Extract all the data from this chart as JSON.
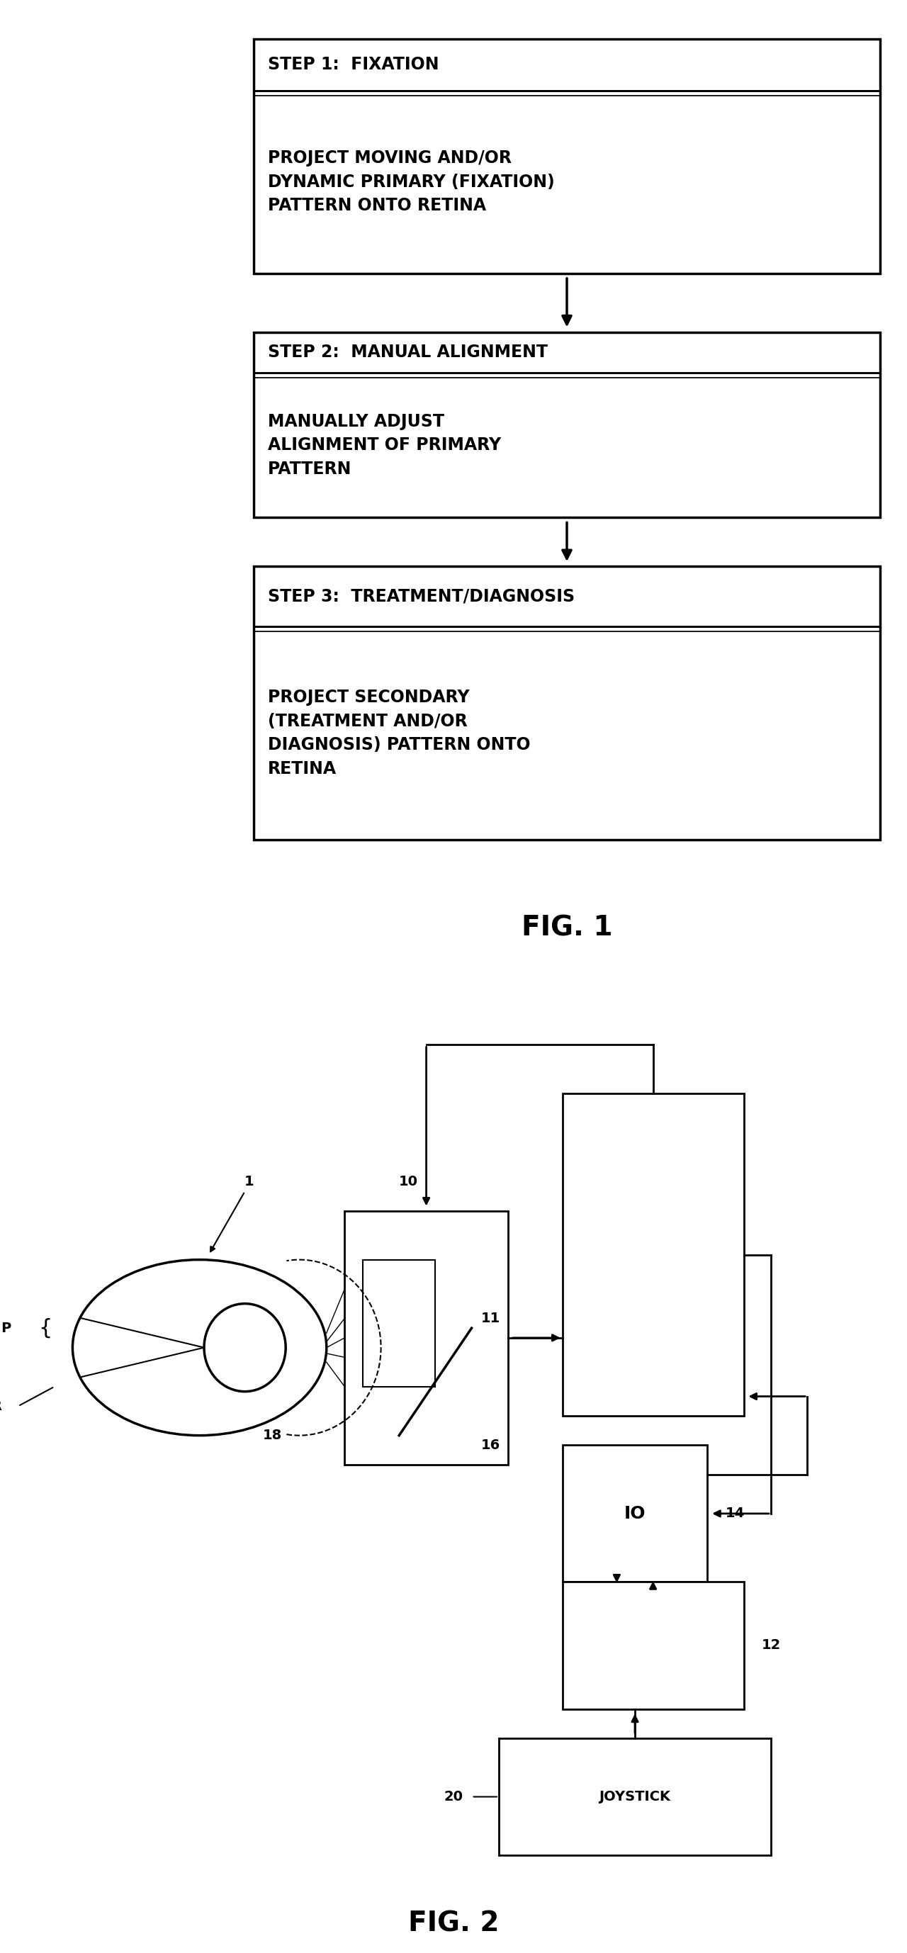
{
  "fig1_title": "FIG. 1",
  "fig2_title": "FIG. 2",
  "bg": "#ffffff",
  "black": "#000000",
  "step1_header": "STEP 1:  FIXATION",
  "step1_body": "PROJECT MOVING AND/OR\nDYNAMIC PRIMARY (FIXATION)\nPATTERN ONTO RETINA",
  "step2_header": "STEP 2:  MANUAL ALIGNMENT",
  "step2_body": "MANUALLY ADJUST\nALIGNMENT OF PRIMARY\nPATTERN",
  "step3_header": "STEP 3:  TREATMENT/DIAGNOSIS",
  "step3_body": "PROJECT SECONDARY\n(TREATMENT AND/OR\nDIAGNOSIS) PATTERN ONTO\nRETINA",
  "hdr_fs": 17,
  "body_fs": 17,
  "fig_label_fs": 28,
  "lbl_fs": 14
}
